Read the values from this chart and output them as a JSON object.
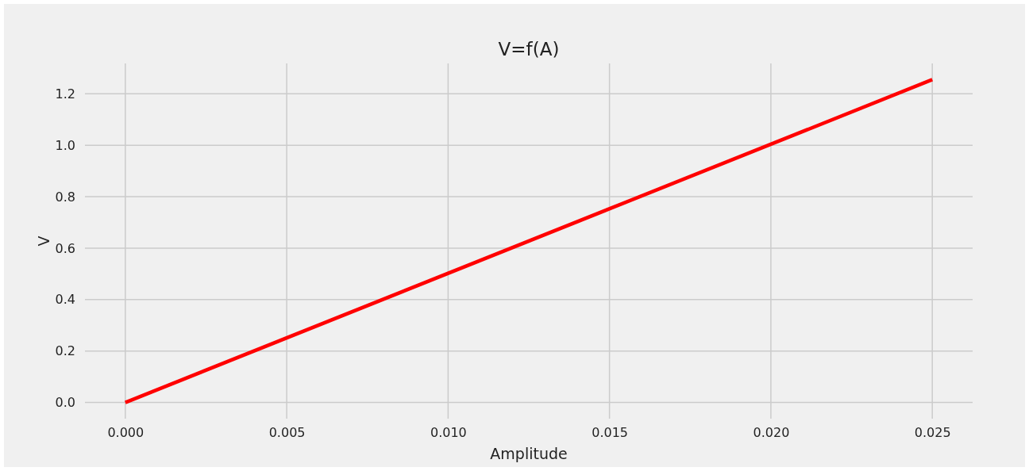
{
  "chart_data": {
    "type": "line",
    "title": "V=f(A)",
    "xlabel": "Amplitude",
    "ylabel": "V",
    "x": [
      0,
      0.025
    ],
    "series": [
      {
        "color": "#ff0000",
        "values": [
          0,
          1.255
        ]
      }
    ],
    "xlim": [
      -0.00125,
      0.02625
    ],
    "xticks": [
      {
        "value": 0,
        "label": "0.000"
      },
      {
        "value": 0.005,
        "label": "0.005"
      },
      {
        "value": 0.01,
        "label": "0.010"
      },
      {
        "value": 0.015,
        "label": "0.015"
      },
      {
        "value": 0.02,
        "label": "0.020"
      },
      {
        "value": 0.025,
        "label": "0.025"
      }
    ],
    "ylim": [
      -0.063,
      1.318
    ],
    "yticks": [
      {
        "value": 0,
        "label": "0.0"
      },
      {
        "value": 0.2,
        "label": "0.2"
      },
      {
        "value": 0.4,
        "label": "0.4"
      },
      {
        "value": 0.6,
        "label": "0.6"
      },
      {
        "value": 0.8,
        "label": "0.8"
      },
      {
        "value": 1,
        "label": "1.0"
      },
      {
        "value": 1.2,
        "label": "1.2"
      }
    ],
    "grid": true,
    "marker": "none",
    "line_style": "solid"
  }
}
